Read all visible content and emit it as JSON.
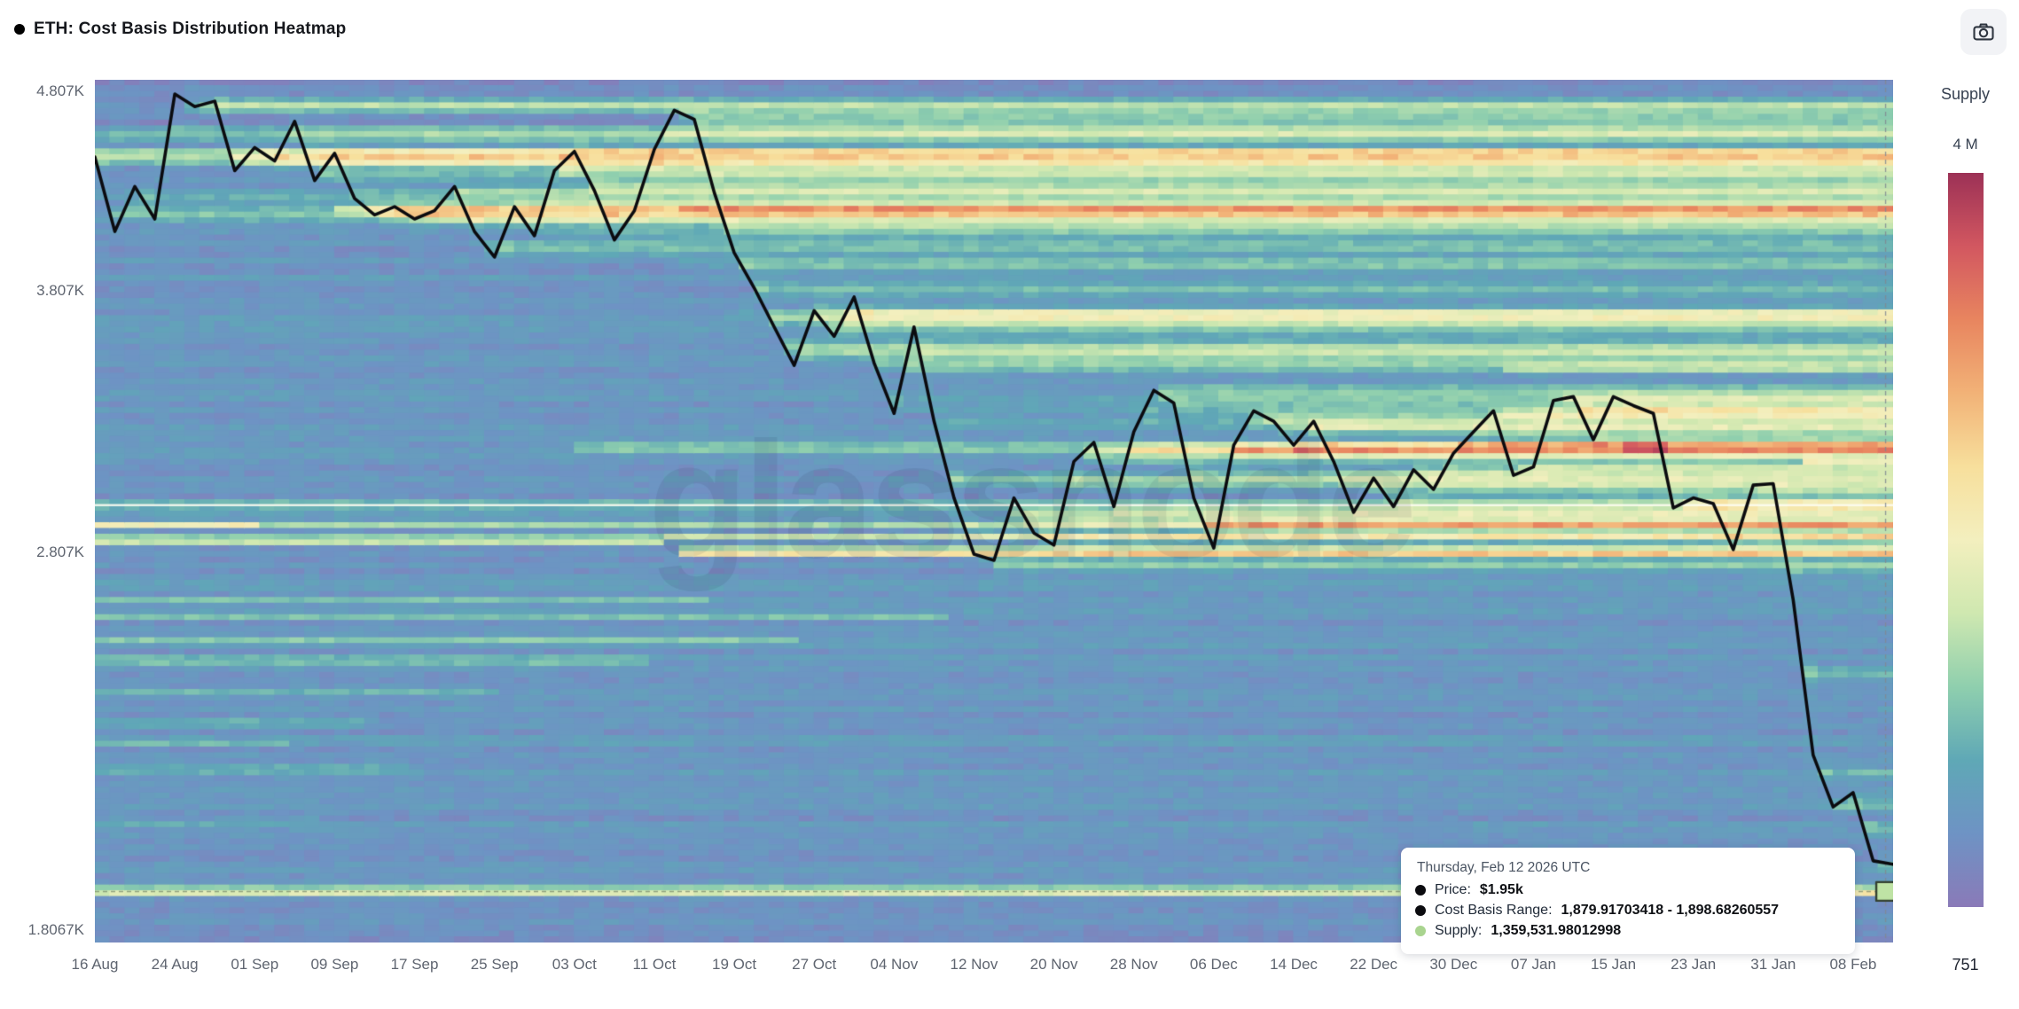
{
  "header": {
    "title": "ETH: Cost Basis Distribution Heatmap"
  },
  "toolbar": {
    "camera_button": "screenshot"
  },
  "tooltip": {
    "title": "Thursday, Feb 12 2026 UTC",
    "price_label": "Price:",
    "price_value": "$1.95k",
    "range_label": "Cost Basis Range:",
    "range_value": "1,879.91703418 - 1,898.68260557",
    "supply_label": "Supply:",
    "supply_value": "1,359,531.98012998",
    "dot_colors": [
      "#0b0b0f",
      "#0b0b0f",
      "#a9d48f"
    ]
  },
  "chart_data": {
    "type": "heatmap",
    "title": "ETH: Cost Basis Distribution Heatmap",
    "watermark": "glassnode",
    "grid": false,
    "x_axis": {
      "span_days": 180,
      "tick_interval_days": 8,
      "tick_labels": [
        "16 Aug",
        "24 Aug",
        "01 Sep",
        "09 Sep",
        "17 Sep",
        "25 Sep",
        "03 Oct",
        "11 Oct",
        "19 Oct",
        "27 Oct",
        "04 Nov",
        "12 Nov",
        "20 Nov",
        "28 Nov",
        "06 Dec",
        "14 Dec",
        "22 Dec",
        "30 Dec",
        "07 Jan",
        "15 Jan",
        "23 Jan",
        "31 Jan",
        "08 Feb"
      ]
    },
    "y_axis": {
      "scale": "log",
      "domain": [
        1780,
        4870
      ],
      "tick_labels": [
        "4.807K",
        "3.807K",
        "2.807K",
        "1.8067K"
      ],
      "tick_values": [
        4807,
        3807,
        2807,
        1806.7
      ]
    },
    "price_line": {
      "name": "Price",
      "color": "#0b0b0f",
      "sample_interval_days": 2,
      "values": [
        4450,
        4080,
        4300,
        4140,
        4790,
        4720,
        4750,
        4380,
        4500,
        4430,
        4640,
        4330,
        4470,
        4240,
        4160,
        4200,
        4140,
        4180,
        4300,
        4080,
        3960,
        4200,
        4060,
        4380,
        4480,
        4280,
        4040,
        4180,
        4490,
        4700,
        4650,
        4270,
        3980,
        3820,
        3650,
        3490,
        3720,
        3610,
        3780,
        3500,
        3300,
        3650,
        3270,
        2990,
        2800,
        2780,
        2990,
        2870,
        2830,
        3120,
        3190,
        2960,
        3230,
        3390,
        3340,
        2990,
        2820,
        3180,
        3310,
        3270,
        3180,
        3270,
        3120,
        2940,
        3060,
        2960,
        3090,
        3020,
        3150,
        3230,
        3310,
        3070,
        3100,
        3350,
        3365,
        3200,
        3365,
        3330,
        3300,
        2955,
        2990,
        2970,
        2815,
        3035,
        3040,
        2655,
        2215,
        2085,
        2120,
        1958,
        1950
      ]
    },
    "supply_bands": [
      {
        "p": 4560,
        "from": 0,
        "to": 180,
        "s": 0.14
      },
      {
        "p": 4450,
        "from": 0,
        "to": 180,
        "s": 0.22,
        "w": 1
      },
      {
        "p": 4180,
        "from": 24,
        "to": 180,
        "s": 0.2
      },
      {
        "p": 4180,
        "from": 58,
        "to": 180,
        "s": 0.1
      },
      {
        "p": 3930,
        "from": 58,
        "to": 180,
        "s": 0.12
      },
      {
        "p": 3700,
        "from": 64,
        "to": 180,
        "s": 0.08
      },
      {
        "p": 3480,
        "from": 140,
        "to": 180,
        "s": 0.16
      },
      {
        "p": 3390,
        "from": 106,
        "to": 180,
        "s": 0.26
      },
      {
        "p": 3300,
        "from": 140,
        "to": 180,
        "s": 0.18
      },
      {
        "p": 3170,
        "from": 48,
        "to": 180,
        "s": 0.3
      },
      {
        "p": 3170,
        "from": 100,
        "to": 180,
        "s": 0.16
      },
      {
        "p": 3170,
        "from": 152,
        "to": 157,
        "s": 0.2
      },
      {
        "p": 3115,
        "from": 170,
        "to": 180,
        "s": 0.28
      },
      {
        "p": 2965,
        "from": 0,
        "to": 180,
        "s": 0.26
      },
      {
        "p": 2900,
        "from": 0,
        "to": 16,
        "s": 0.5
      },
      {
        "p": 2900,
        "from": 16,
        "to": 180,
        "s": 0.3
      },
      {
        "p": 2860,
        "from": 56,
        "to": 180,
        "s": 0.34
      },
      {
        "p": 2807,
        "from": 58,
        "to": 180,
        "s": 0.52
      },
      {
        "p": 2845,
        "from": 0,
        "to": 56,
        "s": 0.34
      },
      {
        "p": 2650,
        "from": 0,
        "to": 60,
        "s": 0.16
      },
      {
        "p": 2600,
        "from": 0,
        "to": 85,
        "s": 0.18
      },
      {
        "p": 2535,
        "from": 0,
        "to": 70,
        "s": 0.2
      },
      {
        "p": 2470,
        "from": 0,
        "to": 55,
        "s": 0.17
      },
      {
        "p": 2380,
        "from": 0,
        "to": 40,
        "s": 0.13
      },
      {
        "p": 2300,
        "from": 0,
        "to": 26,
        "s": 0.12
      },
      {
        "p": 2240,
        "from": 0,
        "to": 18,
        "s": 0.11
      },
      {
        "p": 2180,
        "from": 0,
        "to": 30,
        "s": 0.12
      },
      {
        "p": 2050,
        "from": 0,
        "to": 22,
        "s": 0.1
      },
      {
        "p": 1889,
        "from": 0,
        "to": 180,
        "s": 0.38
      },
      {
        "p": 1889,
        "from": 150,
        "to": 180,
        "s": 0.1
      }
    ],
    "highlight_line_price": 2965,
    "colormap_stops": [
      {
        "t": 0.0,
        "c": "#8a7ab8"
      },
      {
        "t": 0.12,
        "c": "#6e93c4"
      },
      {
        "t": 0.25,
        "c": "#5fa8b6"
      },
      {
        "t": 0.38,
        "c": "#8fcfae"
      },
      {
        "t": 0.52,
        "c": "#cfe8b0"
      },
      {
        "t": 0.63,
        "c": "#f3efbe"
      },
      {
        "t": 0.72,
        "c": "#f7df9c"
      },
      {
        "t": 0.8,
        "c": "#f2b277"
      },
      {
        "t": 0.87,
        "c": "#e8855f"
      },
      {
        "t": 0.94,
        "c": "#d25760"
      },
      {
        "t": 1.0,
        "c": "#9c3156"
      }
    ],
    "colorbar": {
      "title": "Supply",
      "max_label": "4 M",
      "min_label": "751"
    },
    "crosshair": {
      "day": 180,
      "price": 1889.3,
      "marker_fill": "#bfe3a5",
      "marker_stroke": "#33402f"
    }
  }
}
